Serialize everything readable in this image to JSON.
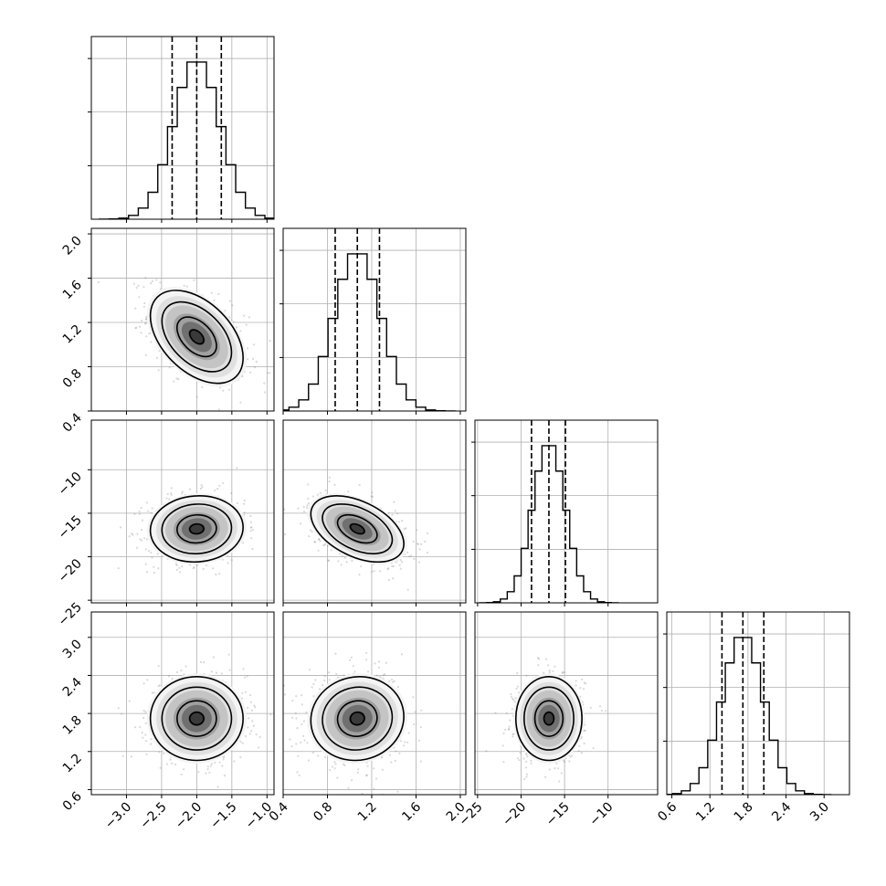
{
  "chart_data": {
    "type": "corner",
    "title": "",
    "parameters": [
      {
        "range": [
          -3.5,
          -0.9
        ],
        "ticks": [
          -3.0,
          -2.5,
          -2.0,
          -1.5,
          -1.0
        ],
        "tick_labels": [
          "−3.0",
          "−2.5",
          "−2.0",
          "−1.5",
          "−1.0"
        ],
        "mean": -2.0,
        "sd": 0.33,
        "quantiles": [
          -2.35,
          -2.0,
          -1.65
        ]
      },
      {
        "range": [
          0.4,
          2.05
        ],
        "ticks": [
          0.4,
          0.8,
          1.2,
          1.6,
          2.0
        ],
        "tick_labels": [
          "0.4",
          "0.8",
          "1.2",
          "1.6",
          "2.0"
        ],
        "mean": 1.07,
        "sd": 0.21,
        "quantiles": [
          0.87,
          1.07,
          1.27
        ]
      },
      {
        "range": [
          -25.3,
          -4.3
        ],
        "ticks": [
          -25,
          -20,
          -15,
          -10
        ],
        "tick_labels": [
          "−25",
          "−20",
          "−15",
          "−10"
        ],
        "mean": -16.8,
        "sd": 1.9,
        "quantiles": [
          -18.8,
          -16.8,
          -14.9
        ]
      },
      {
        "range": [
          0.52,
          3.4
        ],
        "ticks": [
          0.6,
          1.2,
          1.8,
          2.4,
          3.0
        ],
        "tick_labels": [
          "0.6",
          "1.2",
          "1.8",
          "2.4",
          "3.0"
        ],
        "mean": 1.72,
        "sd": 0.33,
        "quantiles": [
          1.39,
          1.72,
          2.05
        ]
      }
    ],
    "correlations": {
      "1-0": -0.45,
      "2-0": 0.05,
      "2-1": -0.45,
      "3-0": 0.0,
      "3-1": 0.05,
      "3-2": 0.0
    },
    "grid": true,
    "bins": 20,
    "contour_levels": 4
  }
}
